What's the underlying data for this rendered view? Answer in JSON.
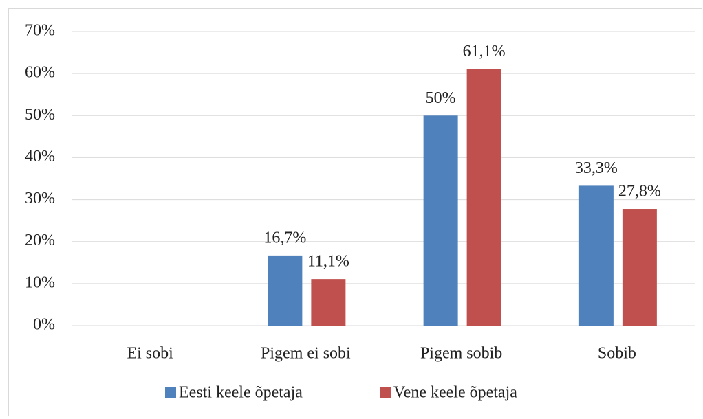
{
  "chart_data": {
    "type": "bar",
    "categories": [
      "Ei sobi",
      "Pigem ei sobi",
      "Pigem sobib",
      "Sobib"
    ],
    "series": [
      {
        "name": "Eesti keele õpetaja",
        "color": "#4f81bd",
        "values": [
          null,
          16.7,
          50,
          33.3
        ],
        "value_labels": [
          null,
          "16,7%",
          "50%",
          "33,3%"
        ]
      },
      {
        "name": "Vene keele õpetaja",
        "color": "#c0504d",
        "values": [
          null,
          11.1,
          61.1,
          27.8
        ],
        "value_labels": [
          null,
          "11,1%",
          "61,1%",
          "27,8%"
        ]
      }
    ],
    "ylim": [
      0,
      70
    ],
    "yticks": [
      {
        "value": 0,
        "label": "0%"
      },
      {
        "value": 10,
        "label": "10%"
      },
      {
        "value": 20,
        "label": "20%"
      },
      {
        "value": 30,
        "label": "30%"
      },
      {
        "value": 40,
        "label": "40%"
      },
      {
        "value": 50,
        "label": "50%"
      },
      {
        "value": 60,
        "label": "60%"
      },
      {
        "value": 70,
        "label": "70%"
      }
    ],
    "grid": true,
    "legend": "bottom"
  }
}
